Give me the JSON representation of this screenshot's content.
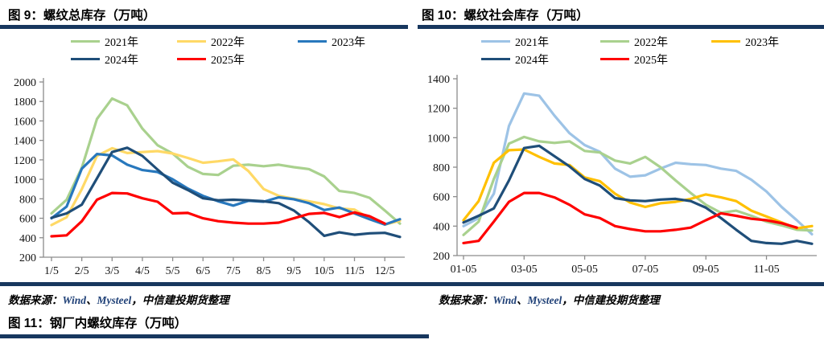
{
  "figures": {
    "fig9": {
      "title": "图 9：螺纹总库存（万吨）"
    },
    "fig10": {
      "title": "图 10：螺纹社会库存（万吨）"
    },
    "fig11": {
      "title": "图 11：钢厂内螺纹库存（万吨）"
    }
  },
  "source_note": {
    "prefix": "数据来源：",
    "wind": "Wind",
    "separator": "、",
    "mysteel": "Mysteel",
    "comma": "，",
    "tail": "中信建投期货整理"
  },
  "colors": {
    "accent_navy": "#17375E",
    "source_link_blue": "#1F4077",
    "axis_gray": "#8C8C8C",
    "red": "#FF0000"
  },
  "chart_data": [
    {
      "type": "line",
      "title": "图 9：螺纹总库存（万吨）",
      "ylabel": "",
      "xlabel": "",
      "ylim": [
        200,
        2000
      ],
      "yticks": [
        200,
        400,
        600,
        800,
        1000,
        1200,
        1400,
        1600,
        1800,
        2000
      ],
      "xtick_labels": [
        "1/5",
        "2/5",
        "3/5",
        "4/5",
        "5/5",
        "6/5",
        "7/5",
        "8/5",
        "9/5",
        "10/5",
        "11/5",
        "12/5"
      ],
      "xtick_point_indices": [
        0,
        2,
        4,
        6,
        8,
        10,
        12,
        14,
        16,
        18,
        20,
        22
      ],
      "x_resolution": "semi-monthly (24 points per year)",
      "legend_position": "top",
      "grid": false,
      "series": [
        {
          "name": "2021年",
          "color": "#A9D18E",
          "values": [
            650,
            790,
            1120,
            1620,
            1830,
            1760,
            1520,
            1350,
            1265,
            1130,
            1055,
            1045,
            1140,
            1150,
            1135,
            1150,
            1125,
            1105,
            1030,
            880,
            860,
            810,
            680,
            545
          ]
        },
        {
          "name": "2022年",
          "color": "#FFD966",
          "values": [
            530,
            610,
            900,
            1240,
            1320,
            1270,
            1280,
            1290,
            1265,
            1220,
            1170,
            1185,
            1205,
            1085,
            900,
            830,
            800,
            775,
            745,
            700,
            690,
            600,
            535,
            575
          ]
        },
        {
          "name": "2023年",
          "color": "#2878BD",
          "values": [
            600,
            720,
            1110,
            1260,
            1245,
            1150,
            1095,
            1075,
            1000,
            905,
            830,
            775,
            730,
            780,
            770,
            815,
            795,
            755,
            685,
            710,
            650,
            590,
            535,
            590
          ]
        },
        {
          "name": "2024年",
          "color": "#1F4E79",
          "values": [
            605,
            650,
            740,
            1010,
            1280,
            1325,
            1240,
            1100,
            965,
            890,
            805,
            785,
            790,
            785,
            775,
            755,
            680,
            560,
            420,
            455,
            430,
            445,
            450,
            408
          ]
        },
        {
          "name": "2025年",
          "color": "#FF0000",
          "values": [
            415,
            425,
            570,
            790,
            860,
            855,
            805,
            770,
            650,
            655,
            600,
            570,
            555,
            545,
            545,
            555,
            600,
            645,
            655,
            612,
            660,
            620,
            545
          ]
        }
      ]
    },
    {
      "type": "line",
      "title": "图 10：螺纹社会库存（万吨）",
      "ylabel": "",
      "xlabel": "",
      "ylim": [
        200,
        1400
      ],
      "yticks": [
        200,
        400,
        600,
        800,
        1000,
        1200,
        1400
      ],
      "xtick_labels": [
        "01-05",
        "03-05",
        "05-05",
        "07-05",
        "09-05",
        "11-05"
      ],
      "xtick_point_indices": [
        0,
        4,
        8,
        12,
        16,
        20
      ],
      "x_resolution": "semi-monthly (24 points per year)",
      "legend_position": "top",
      "grid": false,
      "series": [
        {
          "name": "2021年",
          "color": "#9DC3E6",
          "values": [
            400,
            455,
            620,
            1080,
            1300,
            1285,
            1150,
            1030,
            950,
            905,
            790,
            735,
            745,
            790,
            830,
            820,
            815,
            790,
            775,
            715,
            635,
            530,
            440,
            345
          ]
        },
        {
          "name": "2022年",
          "color": "#A9D18E",
          "values": [
            340,
            430,
            720,
            960,
            1005,
            975,
            965,
            975,
            910,
            900,
            845,
            825,
            870,
            800,
            710,
            625,
            545,
            490,
            505,
            470,
            430,
            405,
            375,
            370
          ]
        },
        {
          "name": "2023年",
          "color": "#FFC000",
          "values": [
            440,
            570,
            830,
            915,
            920,
            870,
            825,
            815,
            730,
            705,
            620,
            560,
            530,
            555,
            565,
            585,
            615,
            595,
            570,
            505,
            465,
            425,
            385,
            400
          ]
        },
        {
          "name": "2024年",
          "color": "#1F4E79",
          "values": [
            425,
            470,
            520,
            710,
            930,
            945,
            875,
            805,
            720,
            675,
            590,
            575,
            570,
            580,
            585,
            570,
            525,
            455,
            375,
            300,
            285,
            280,
            300,
            280
          ]
        },
        {
          "name": "2025年",
          "color": "#FF0000",
          "values": [
            285,
            300,
            430,
            565,
            625,
            625,
            595,
            545,
            480,
            455,
            400,
            380,
            365,
            365,
            375,
            390,
            440,
            487,
            470,
            450,
            440,
            420,
            390
          ]
        }
      ]
    }
  ]
}
